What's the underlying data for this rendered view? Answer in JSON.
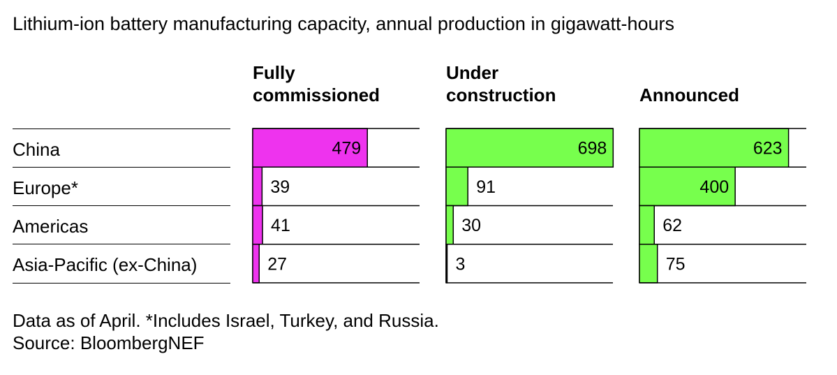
{
  "title": "Lithium-ion battery manufacturing capacity, annual production in gigawatt-hours",
  "footnote": "Data as of April. *Includes Israel, Turkey, and Russia.",
  "source": "Source: BloombergNEF",
  "chart_data": {
    "type": "bar",
    "categories": [
      "China",
      "Europe*",
      "Americas",
      "Asia-Pacific (ex-China)"
    ],
    "xlim": [
      0,
      700
    ],
    "series": [
      {
        "name": "Fully\ncommissioned",
        "color": "#ee33ee",
        "values": [
          479,
          39,
          41,
          27
        ]
      },
      {
        "name": "Under\nconstruction",
        "color": "#77ff4d",
        "values": [
          698,
          91,
          30,
          3
        ]
      },
      {
        "name": "Announced",
        "color": "#77ff4d",
        "values": [
          623,
          400,
          62,
          75
        ]
      }
    ]
  }
}
